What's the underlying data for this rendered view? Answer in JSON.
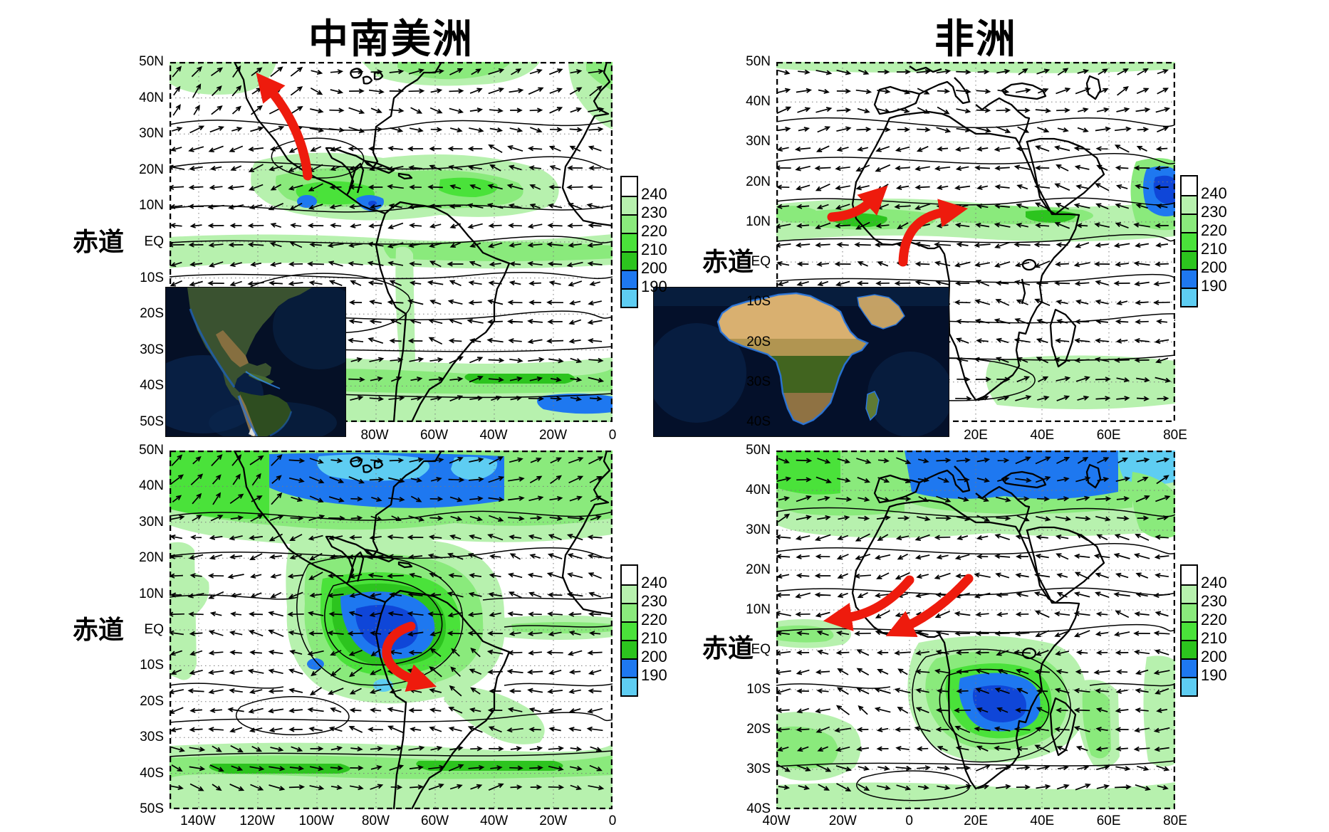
{
  "figure": {
    "background": "#ffffff",
    "titles": {
      "left": "中南美洲",
      "right": "非洲"
    },
    "equator_label": "赤道"
  },
  "colorbar": {
    "labels": [
      "240",
      "230",
      "220",
      "210",
      "200",
      "190"
    ],
    "colors": [
      "#ffffff",
      "#b7f1ae",
      "#8aea7c",
      "#4ae23a",
      "#2cc41e",
      "#1e78f0",
      "#5ecdf2"
    ]
  },
  "panels": {
    "top_left": {
      "y_ticks": [
        "50N",
        "40N",
        "30N",
        "20N",
        "10N",
        "EQ",
        "10S",
        "20S",
        "30S",
        "40S",
        "50S"
      ],
      "x_ticks": [
        "80W",
        "60W",
        "40W",
        "20W",
        "0"
      ]
    },
    "top_right": {
      "y_ticks": [
        "50N",
        "40N",
        "30N",
        "20N",
        "10N",
        "EQ",
        "10S",
        "20S",
        "30S",
        "40S"
      ],
      "x_ticks": [
        "20E",
        "40E",
        "60E",
        "80E"
      ]
    },
    "bottom_left": {
      "y_ticks": [
        "50N",
        "40N",
        "30N",
        "20N",
        "10N",
        "EQ",
        "10S",
        "20S",
        "30S",
        "40S",
        "50S"
      ],
      "x_ticks": [
        "140W",
        "120W",
        "100W",
        "80W",
        "60W",
        "40W",
        "20W",
        "0"
      ]
    },
    "bottom_right": {
      "y_ticks": [
        "50N",
        "40N",
        "30N",
        "20N",
        "10N",
        "EQ",
        "10S",
        "20S",
        "30S",
        "40S"
      ],
      "x_ticks": [
        "40W",
        "20W",
        "0",
        "20E",
        "40E",
        "60E",
        "80E"
      ]
    }
  },
  "annotations": {
    "arrow_color": "#ee1b0d"
  }
}
